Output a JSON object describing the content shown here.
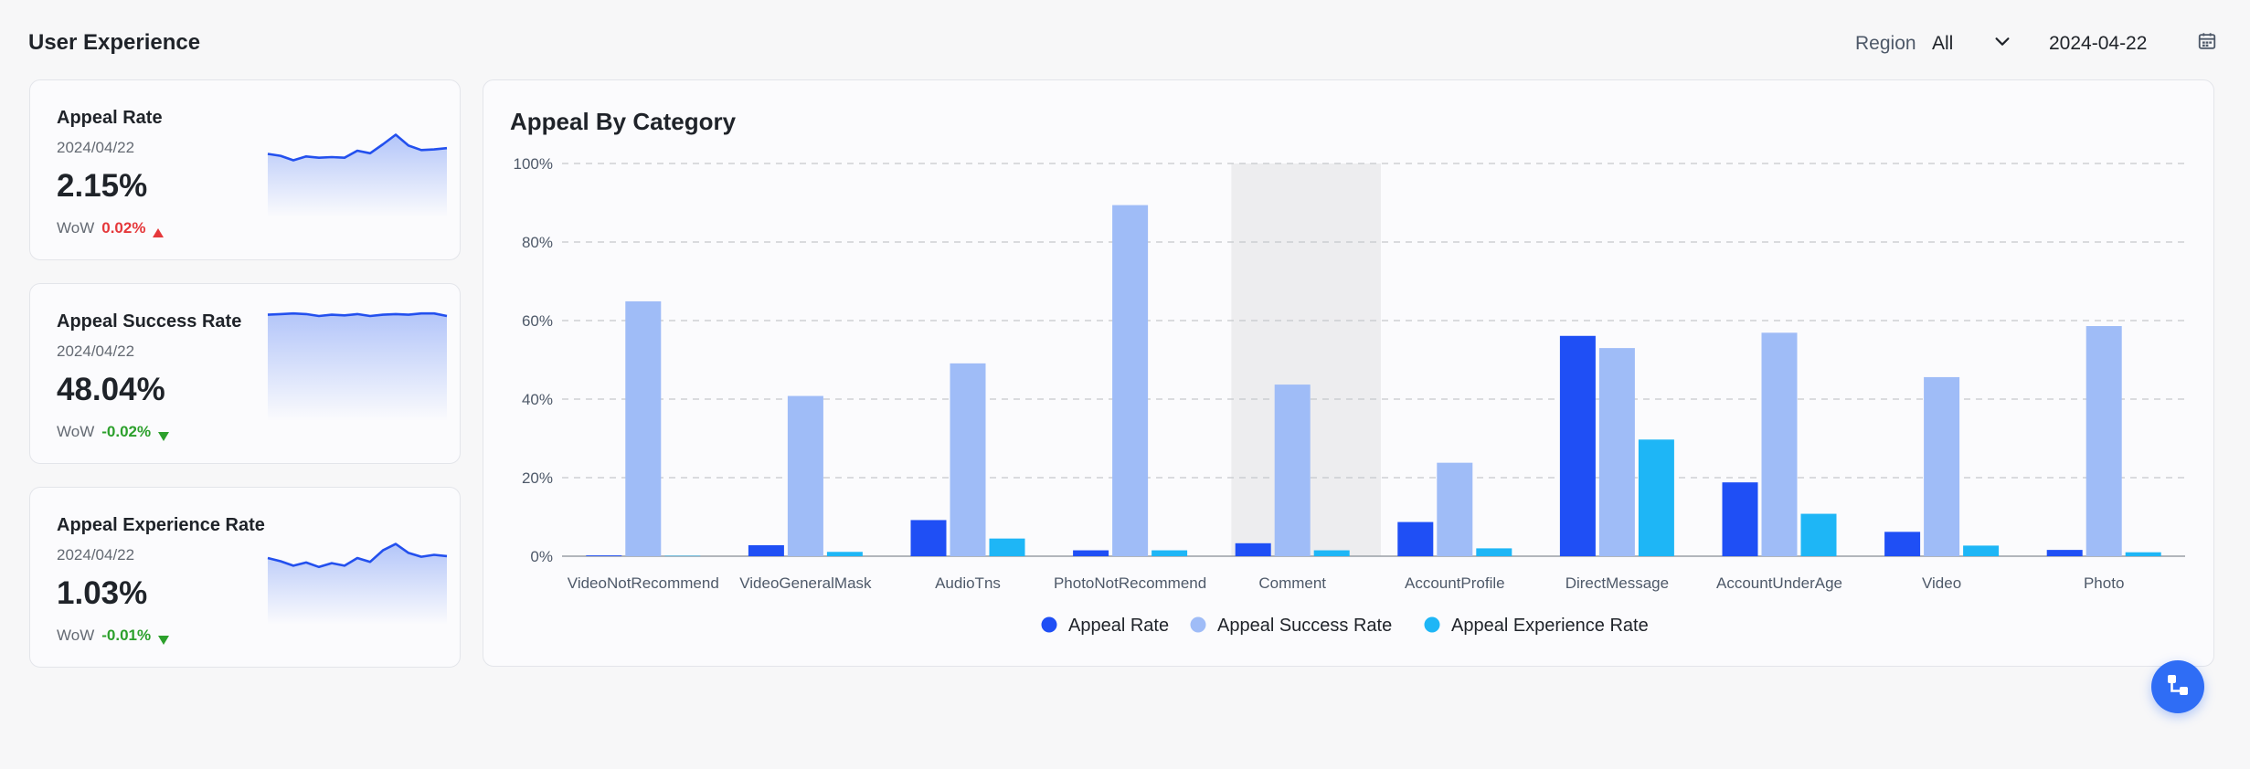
{
  "section_title": "User Experience",
  "filters": {
    "region_label": "Region",
    "region_value": "All",
    "date_value": "2024-04-22"
  },
  "metrics": [
    {
      "title": "Appeal Rate",
      "date": "2024/04/22",
      "value": "2.15%",
      "wow_label": "WoW",
      "wow_delta": "0.02%",
      "trend": "up",
      "spark": [
        0.25,
        0.22,
        0.15,
        0.21,
        0.19,
        0.2,
        0.19,
        0.3,
        0.26,
        0.4,
        0.55,
        0.38,
        0.31,
        0.32,
        0.34
      ]
    },
    {
      "title": "Appeal Success Rate",
      "date": "2024/04/22",
      "value": "48.04%",
      "wow_label": "WoW",
      "wow_delta": "-0.02%",
      "trend": "down",
      "spark": [
        0.92,
        0.93,
        0.94,
        0.93,
        0.9,
        0.92,
        0.91,
        0.93,
        0.9,
        0.92,
        0.93,
        0.92,
        0.94,
        0.94,
        0.9
      ]
    },
    {
      "title": "Appeal Experience Rate",
      "date": "2024/04/22",
      "value": "1.03%",
      "wow_label": "WoW",
      "wow_delta": "-0.01%",
      "trend": "down",
      "spark": [
        0.3,
        0.25,
        0.18,
        0.23,
        0.16,
        0.22,
        0.18,
        0.3,
        0.24,
        0.42,
        0.52,
        0.38,
        0.32,
        0.35,
        0.33
      ]
    }
  ],
  "colors": {
    "appeal_rate": "#1f4ff5",
    "appeal_success_rate": "#9fbcf7",
    "appeal_experience_rate": "#1eb6f6",
    "up": "#e5383b",
    "down": "#2ca02c"
  },
  "chart_data": {
    "type": "bar",
    "title": "Appeal By Category",
    "categories": [
      "VideoNotRecommend",
      "VideoGeneralMask",
      "AudioTns",
      "PhotoNotRecommend",
      "Comment",
      "AccountProfile",
      "DirectMessage",
      "AccountUnderAge",
      "Video",
      "Photo"
    ],
    "series": [
      {
        "name": "Appeal Rate",
        "values": [
          0.2,
          2.8,
          9.2,
          1.5,
          3.3,
          8.7,
          56.1,
          18.8,
          6.2,
          1.6
        ]
      },
      {
        "name": "Appeal Success Rate",
        "values": [
          64.9,
          40.8,
          49.1,
          89.4,
          43.7,
          23.8,
          53.0,
          56.9,
          45.6,
          58.6
        ]
      },
      {
        "name": "Appeal Experience Rate",
        "values": [
          0.1,
          1.1,
          4.5,
          1.5,
          1.5,
          2.0,
          29.7,
          10.8,
          2.7,
          1.0
        ]
      }
    ],
    "ylim": [
      0,
      100
    ],
    "yticks": [
      "0%",
      "20%",
      "40%",
      "60%",
      "80%",
      "100%"
    ],
    "grid": true,
    "legend_position": "bottom",
    "highlighted_category": "Comment"
  },
  "icons": {
    "region_dropdown": "chevron-down-icon",
    "date_picker": "calendar-icon",
    "fab": "flow-icon"
  }
}
